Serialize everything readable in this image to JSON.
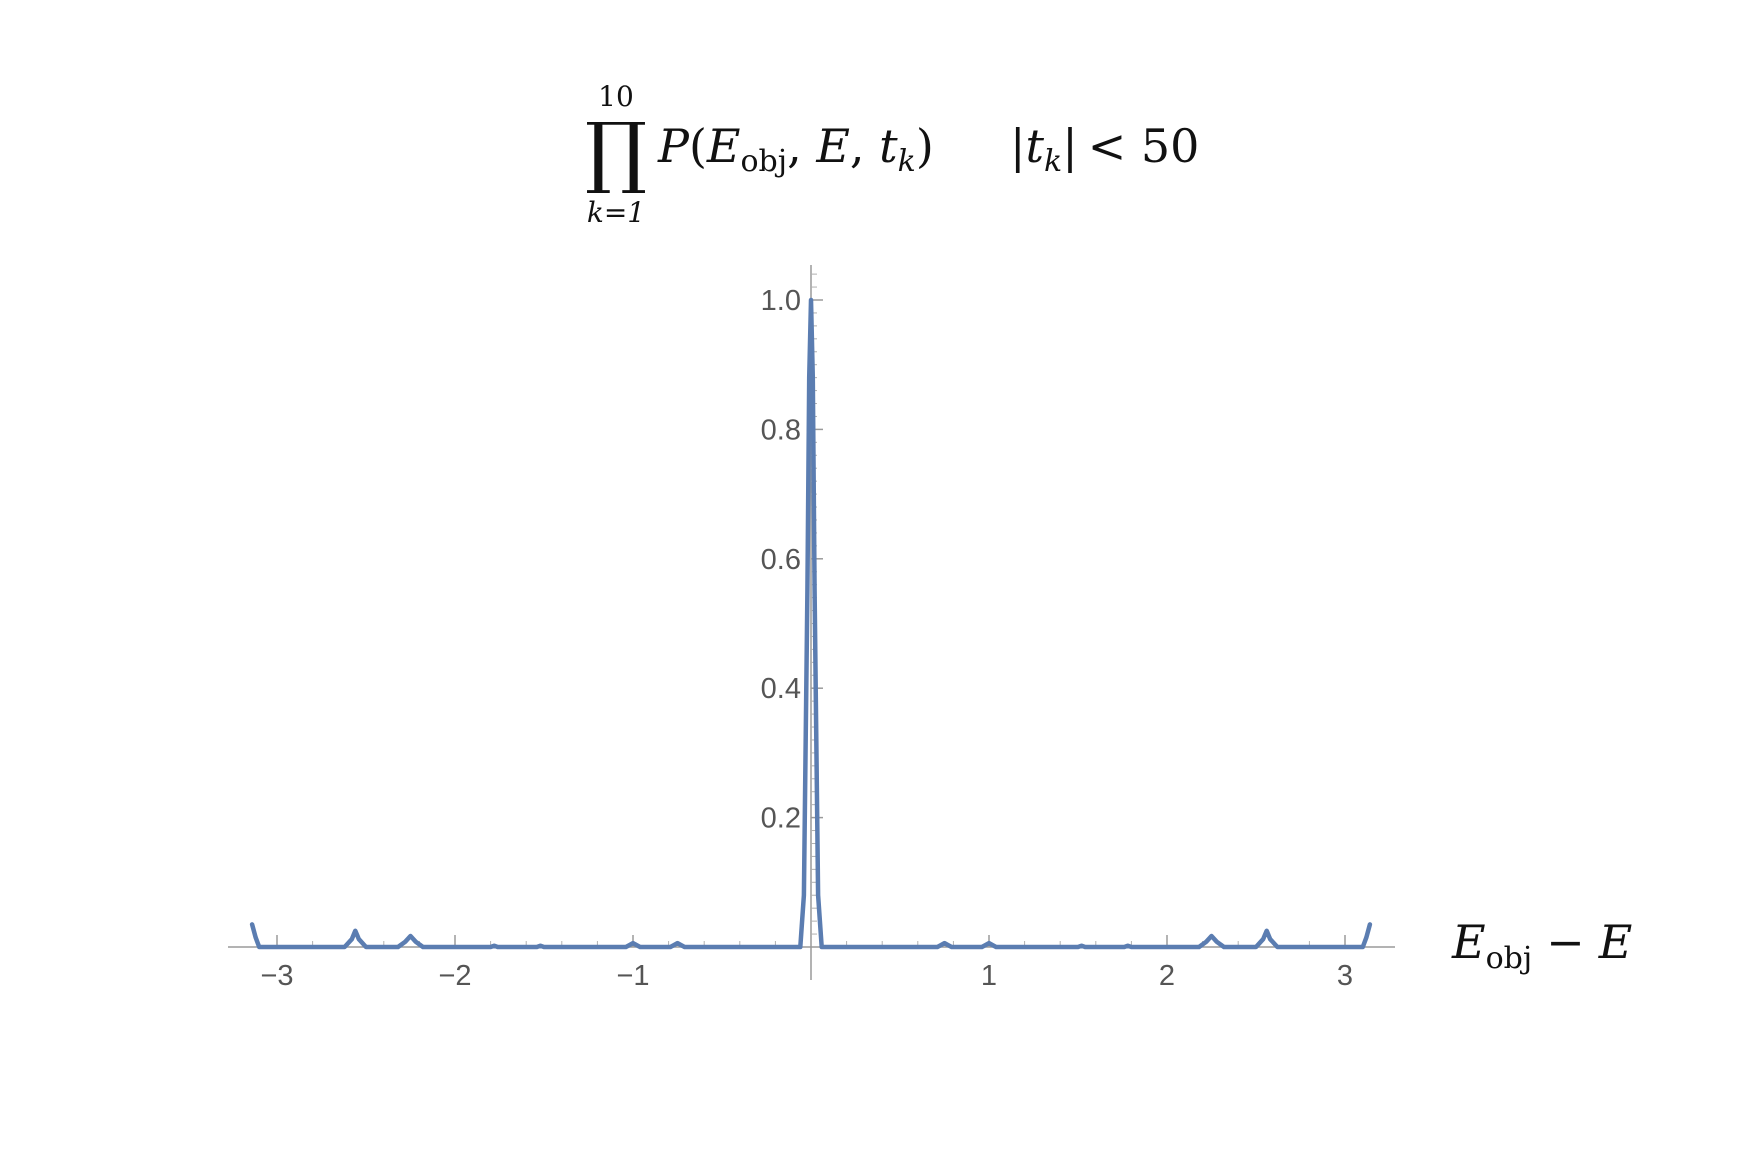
{
  "chart_data": {
    "type": "line",
    "title": {
      "product_upper": "10",
      "product_symbol": "∏",
      "product_lower": "k=1",
      "expression": {
        "P": "P",
        "open": "(",
        "E": "E",
        "obj_sub": "obj",
        "comma1": ", ",
        "E2": "E",
        "comma2": ", ",
        "t": "t",
        "k_sub": "k",
        "close": ")"
      },
      "condition": {
        "bar_open": "|",
        "t": "t",
        "k_sub": "k",
        "bar_close": "|",
        "relation": "< 50"
      }
    },
    "xlabel": {
      "E": "E",
      "obj_sub": "obj",
      "minus": "−",
      "E2": "E"
    },
    "ylabel": "",
    "xlim": [
      -3.14,
      3.14
    ],
    "ylim": [
      0,
      1.0
    ],
    "x_ticks": [
      -3,
      -2,
      -1,
      1,
      2,
      3
    ],
    "x_tick_labels": [
      "−3",
      "−2",
      "−1",
      "1",
      "2",
      "3"
    ],
    "y_ticks": [
      0.2,
      0.4,
      0.6,
      0.8,
      1.0
    ],
    "y_tick_labels": [
      "0.2",
      "0.4",
      "0.6",
      "0.8",
      "1.0"
    ],
    "grid": false,
    "series": [
      {
        "color": "#5B7DB1",
        "x": [
          -3.14,
          -3.12,
          -3.1,
          -3.08,
          -2.62,
          -2.58,
          -2.56,
          -2.54,
          -2.5,
          -2.32,
          -2.28,
          -2.25,
          -2.22,
          -2.18,
          -1.8,
          -1.78,
          -1.76,
          -1.54,
          -1.52,
          -1.5,
          -1.04,
          -1.02,
          -1.0,
          -0.98,
          -0.96,
          -0.79,
          -0.77,
          -0.75,
          -0.73,
          -0.71,
          -0.06,
          -0.04,
          -0.02,
          -0.01,
          0.0,
          0.01,
          0.02,
          0.04,
          0.06,
          0.71,
          0.73,
          0.75,
          0.77,
          0.79,
          0.96,
          0.98,
          1.0,
          1.02,
          1.04,
          1.5,
          1.52,
          1.54,
          1.76,
          1.78,
          1.8,
          2.18,
          2.22,
          2.25,
          2.28,
          2.32,
          2.5,
          2.54,
          2.56,
          2.58,
          2.62,
          3.08,
          3.1,
          3.12,
          3.14
        ],
        "y": [
          0.035,
          0.015,
          0.0,
          0.0,
          0.0,
          0.012,
          0.025,
          0.012,
          0.0,
          0.0,
          0.008,
          0.017,
          0.008,
          0.0,
          0.0,
          0.002,
          0.0,
          0.0,
          0.002,
          0.0,
          0.0,
          0.003,
          0.006,
          0.003,
          0.0,
          0.0,
          0.003,
          0.006,
          0.003,
          0.0,
          0.0,
          0.08,
          0.55,
          0.88,
          1.0,
          0.88,
          0.55,
          0.08,
          0.0,
          0.0,
          0.003,
          0.006,
          0.003,
          0.0,
          0.0,
          0.003,
          0.006,
          0.003,
          0.0,
          0.0,
          0.002,
          0.0,
          0.0,
          0.002,
          0.0,
          0.0,
          0.008,
          0.017,
          0.008,
          0.0,
          0.0,
          0.012,
          0.025,
          0.012,
          0.0,
          0.0,
          0.0,
          0.015,
          0.035
        ]
      }
    ]
  }
}
